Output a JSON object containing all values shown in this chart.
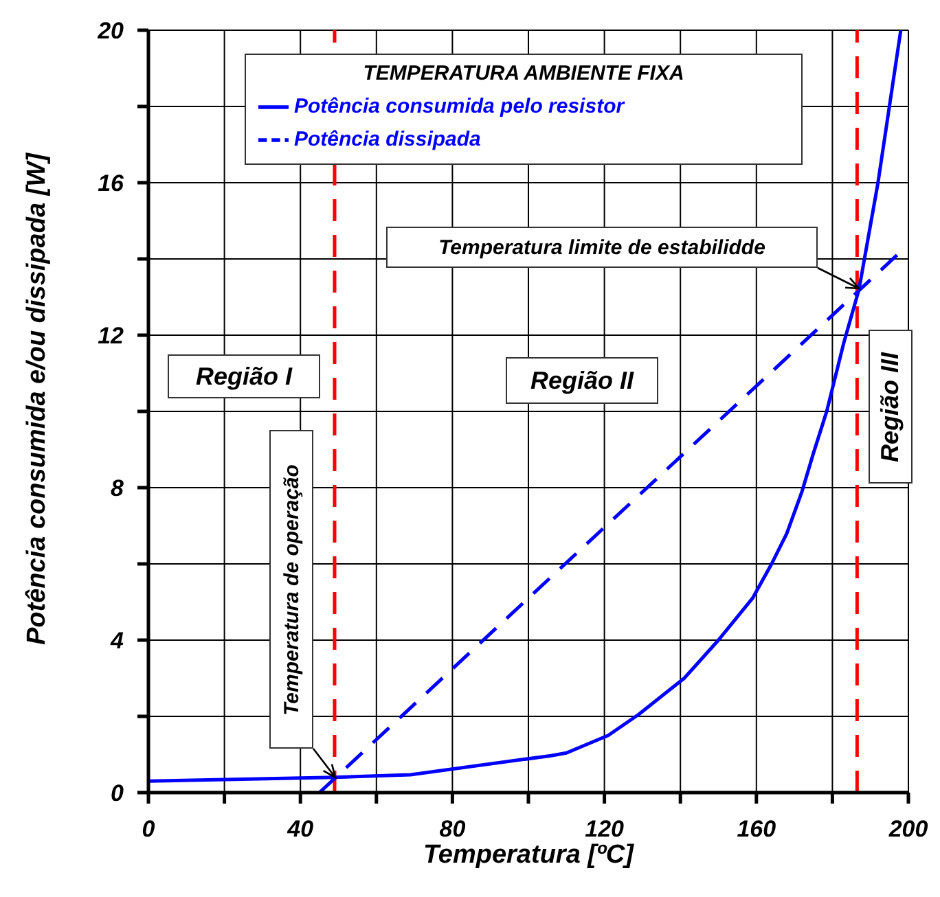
{
  "chart_data": {
    "type": "line",
    "xlabel": "Temperatura [ºC]",
    "ylabel": "Potência consumida e/ou dissipada [W]",
    "legend_title": "TEMPERATURA AMBIENTE FIXA",
    "series": [
      {
        "name": "Potência consumida pelo resistor",
        "color": "#0000ff",
        "line_style": "solid",
        "x": [
          0,
          49,
          69,
          106,
          110,
          121,
          129,
          141,
          150,
          159,
          164,
          168,
          172,
          175,
          178.5,
          183,
          187,
          192,
          198
        ],
        "values": [
          0.3,
          0.4,
          0.47,
          0.97,
          1.04,
          1.5,
          2.05,
          3.0,
          4.0,
          5.1,
          6.0,
          6.8,
          7.9,
          8.9,
          10.0,
          11.8,
          13.2,
          16.0,
          20
        ]
      },
      {
        "name": "Potência dissipada",
        "color": "#0000ff",
        "line_style": "dashed",
        "x": [
          45,
          197
        ],
        "values": [
          0,
          14.1
        ]
      }
    ],
    "xlim": [
      0,
      200
    ],
    "ylim": [
      0,
      20
    ],
    "xticks": [
      0,
      {
        "value": 20,
        "label": null
      },
      40,
      {
        "value": 60,
        "label": null
      },
      80,
      {
        "value": 100,
        "label": null
      },
      120,
      {
        "value": 140,
        "label": null
      },
      160,
      {
        "value": 180,
        "label": null
      },
      200
    ],
    "yticks": [
      0,
      {
        "value": 2,
        "label": null
      },
      4,
      {
        "value": 6,
        "label": null
      },
      8,
      {
        "value": 10,
        "label": null
      },
      12,
      {
        "value": 14,
        "label": null
      },
      16,
      {
        "value": 18,
        "label": null
      },
      20
    ],
    "grid": true,
    "legend": "top",
    "marker": "none",
    "ref_lines": [
      {
        "axis": "x",
        "value": 49,
        "color": "#ff0000",
        "line_style": "dashed"
      },
      {
        "axis": "x",
        "value": 186.5,
        "color": "#ff0000",
        "line_style": "dashed"
      }
    ],
    "annotations": [
      "Região I",
      "Região II",
      "Região III",
      "Temperatura de operação",
      "Temperatura limite de estabilidde"
    ]
  }
}
